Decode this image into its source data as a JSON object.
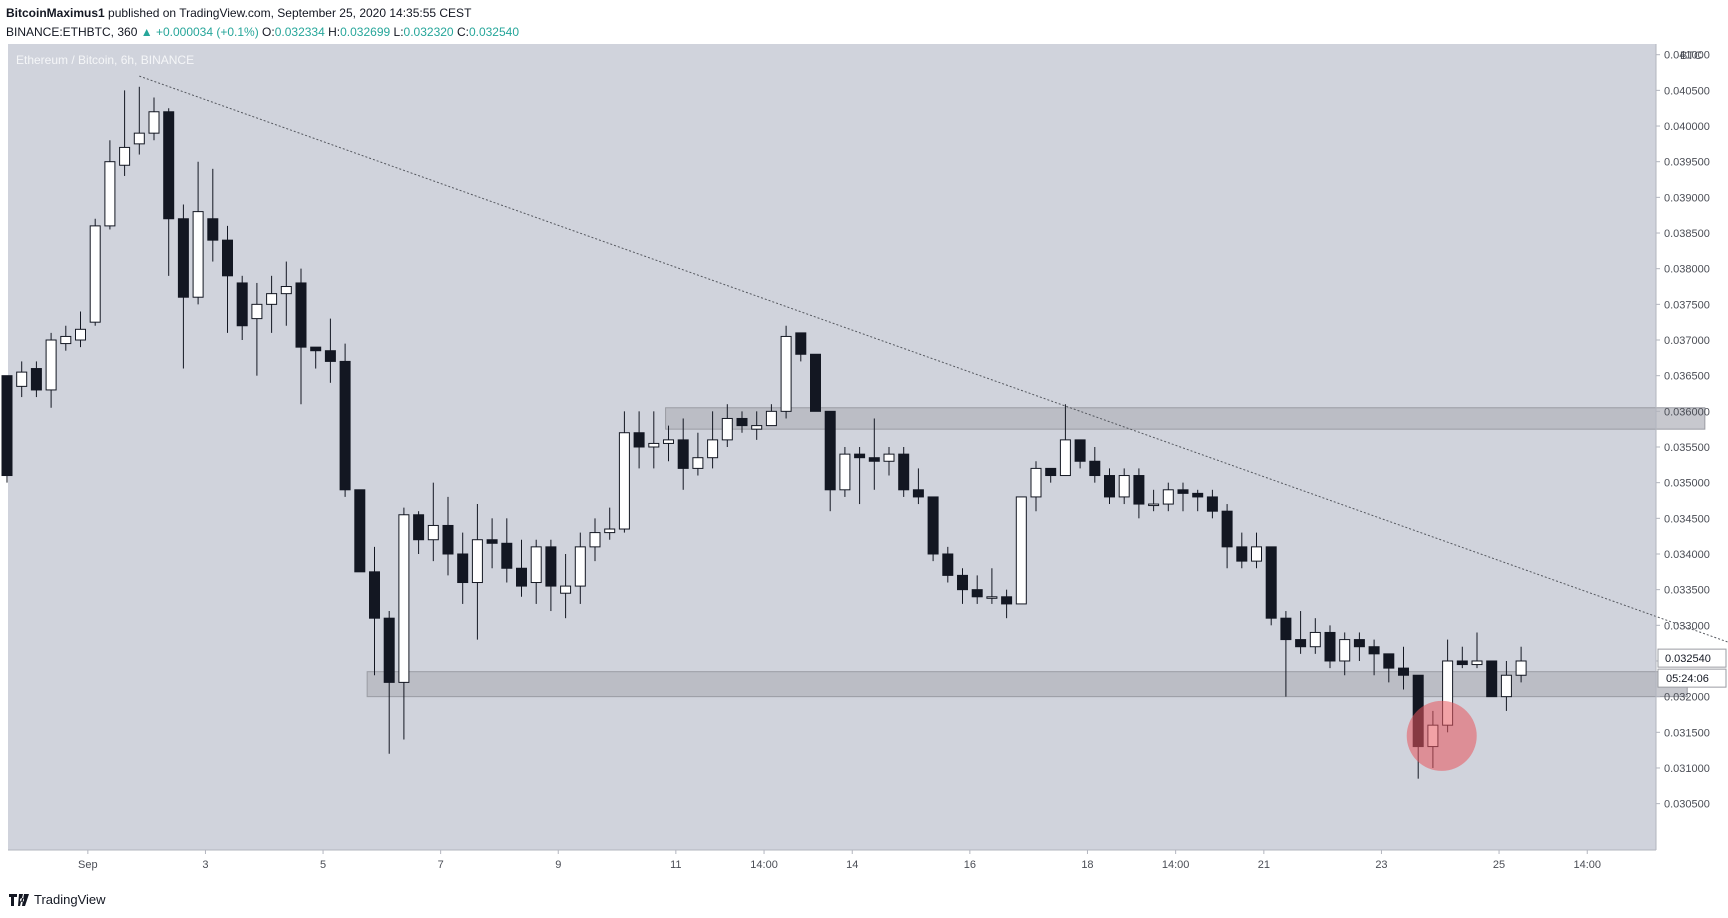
{
  "header": {
    "author": "BitcoinMaximus1",
    "published_text": "published on TradingView.com, September 25, 2020 14:35:55 CEST",
    "symbol": "BINANCE:ETHBTC, 360",
    "change": "+0.000034 (+0.1%)",
    "o_label": "O:",
    "o_value": "0.032334",
    "h_label": "H:",
    "h_value": "0.032699",
    "l_label": "L:",
    "l_value": "0.032320",
    "c_label": "C:",
    "c_value": "0.032540"
  },
  "chart_title": "Ethereum / Bitcoin, 6h, BINANCE",
  "footer": {
    "brand": "TradingView"
  },
  "chart_data": {
    "type": "candlestick",
    "currency": "BTC",
    "yticks": [
      "0.041000",
      "0.040500",
      "0.040000",
      "0.039500",
      "0.039000",
      "0.038500",
      "0.038000",
      "0.037500",
      "0.037000",
      "0.036500",
      "0.036000",
      "0.035500",
      "0.035000",
      "0.034500",
      "0.034000",
      "0.033500",
      "0.033000",
      "0.032500",
      "0.032000",
      "0.031500",
      "0.031000",
      "0.030500"
    ],
    "ylim": [
      0.02985,
      0.04115
    ],
    "xticks": [
      {
        "label": "Sep",
        "index": 5.5
      },
      {
        "label": "3",
        "index": 13.5
      },
      {
        "label": "5",
        "index": 21.5
      },
      {
        "label": "7",
        "index": 29.5
      },
      {
        "label": "9",
        "index": 37.5
      },
      {
        "label": "11",
        "index": 45.5
      },
      {
        "label": "14:00",
        "index": 51.5
      },
      {
        "label": "14",
        "index": 57.5
      },
      {
        "label": "16",
        "index": 65.5
      },
      {
        "label": "18",
        "index": 73.5
      },
      {
        "label": "14:00",
        "index": 79.5
      },
      {
        "label": "21",
        "index": 85.5
      },
      {
        "label": "23",
        "index": 93.5
      },
      {
        "label": "25",
        "index": 101.5
      },
      {
        "label": "14:00",
        "index": 107.5
      }
    ],
    "last_price_label": "0.032540",
    "countdown_label": "05:24:06",
    "candles": [
      [
        0.0365,
        0.0351,
        0.0365,
        0.035
      ],
      [
        0.03635,
        0.03655,
        0.0367,
        0.0362
      ],
      [
        0.0366,
        0.0363,
        0.0367,
        0.0362
      ],
      [
        0.0363,
        0.037,
        0.0371,
        0.03605
      ],
      [
        0.03695,
        0.03705,
        0.0372,
        0.03685
      ],
      [
        0.037,
        0.03715,
        0.0374,
        0.0369
      ],
      [
        0.03725,
        0.0386,
        0.0387,
        0.0372
      ],
      [
        0.0386,
        0.0395,
        0.0398,
        0.03855
      ],
      [
        0.03945,
        0.0397,
        0.0405,
        0.0393
      ],
      [
        0.03975,
        0.0399,
        0.04055,
        0.0396
      ],
      [
        0.0399,
        0.0402,
        0.0404,
        0.0398
      ],
      [
        0.0402,
        0.0387,
        0.04025,
        0.0379
      ],
      [
        0.0387,
        0.0376,
        0.0389,
        0.0366
      ],
      [
        0.0376,
        0.0388,
        0.0395,
        0.0375
      ],
      [
        0.0387,
        0.0384,
        0.0394,
        0.0381
      ],
      [
        0.0384,
        0.0379,
        0.0386,
        0.0371
      ],
      [
        0.0378,
        0.0372,
        0.0379,
        0.037
      ],
      [
        0.0373,
        0.0375,
        0.0378,
        0.0365
      ],
      [
        0.0375,
        0.03765,
        0.0379,
        0.0371
      ],
      [
        0.03765,
        0.03775,
        0.0381,
        0.0372
      ],
      [
        0.0378,
        0.0369,
        0.038,
        0.0361
      ],
      [
        0.0369,
        0.03685,
        0.0369,
        0.0366
      ],
      [
        0.03685,
        0.0367,
        0.0373,
        0.0364
      ],
      [
        0.0367,
        0.0349,
        0.03695,
        0.0348
      ],
      [
        0.0349,
        0.03375,
        0.0349,
        0.0338
      ],
      [
        0.03375,
        0.0331,
        0.0341,
        0.0323
      ],
      [
        0.0331,
        0.0322,
        0.0332,
        0.0312
      ],
      [
        0.0322,
        0.03455,
        0.03465,
        0.0314
      ],
      [
        0.03455,
        0.0342,
        0.0346,
        0.034
      ],
      [
        0.0342,
        0.0344,
        0.035,
        0.0339
      ],
      [
        0.0344,
        0.034,
        0.0348,
        0.0337
      ],
      [
        0.034,
        0.0336,
        0.0343,
        0.0333
      ],
      [
        0.0336,
        0.0342,
        0.0347,
        0.0328
      ],
      [
        0.0342,
        0.03415,
        0.0345,
        0.0338
      ],
      [
        0.03415,
        0.0338,
        0.0345,
        0.0336
      ],
      [
        0.0338,
        0.03355,
        0.0342,
        0.0334
      ],
      [
        0.0336,
        0.0341,
        0.0342,
        0.0333
      ],
      [
        0.0341,
        0.03355,
        0.0342,
        0.0332
      ],
      [
        0.03345,
        0.03355,
        0.034,
        0.0331
      ],
      [
        0.03355,
        0.0341,
        0.0343,
        0.0333
      ],
      [
        0.0341,
        0.0343,
        0.0345,
        0.0339
      ],
      [
        0.0343,
        0.03435,
        0.03465,
        0.0342
      ],
      [
        0.03435,
        0.0357,
        0.036,
        0.0343
      ],
      [
        0.0357,
        0.0355,
        0.036,
        0.0352
      ],
      [
        0.0355,
        0.03555,
        0.036,
        0.0352
      ],
      [
        0.03555,
        0.0356,
        0.0358,
        0.0353
      ],
      [
        0.0356,
        0.0352,
        0.0359,
        0.0349
      ],
      [
        0.0352,
        0.03535,
        0.0357,
        0.0351
      ],
      [
        0.03535,
        0.0356,
        0.036,
        0.0352
      ],
      [
        0.0356,
        0.0359,
        0.0361,
        0.0355
      ],
      [
        0.0359,
        0.0358,
        0.036,
        0.0357
      ],
      [
        0.03575,
        0.0358,
        0.036,
        0.0356
      ],
      [
        0.0358,
        0.036,
        0.0361,
        0.0358
      ],
      [
        0.036,
        0.03705,
        0.0372,
        0.0359
      ],
      [
        0.0371,
        0.0368,
        0.0371,
        0.0367
      ],
      [
        0.0368,
        0.036,
        0.0368,
        0.036
      ],
      [
        0.036,
        0.0349,
        0.036,
        0.0346
      ],
      [
        0.0349,
        0.0354,
        0.0355,
        0.0348
      ],
      [
        0.0354,
        0.03535,
        0.0355,
        0.0347
      ],
      [
        0.03535,
        0.0353,
        0.0359,
        0.0349
      ],
      [
        0.0353,
        0.0354,
        0.0355,
        0.0351
      ],
      [
        0.0354,
        0.0349,
        0.0355,
        0.0348
      ],
      [
        0.0349,
        0.0348,
        0.0352,
        0.0347
      ],
      [
        0.0348,
        0.034,
        0.0348,
        0.0339
      ],
      [
        0.034,
        0.0337,
        0.0341,
        0.0336
      ],
      [
        0.0337,
        0.0335,
        0.0338,
        0.0333
      ],
      [
        0.0335,
        0.0334,
        0.0337,
        0.0333
      ],
      [
        0.0334,
        0.0334,
        0.0338,
        0.0333
      ],
      [
        0.0334,
        0.0333,
        0.0335,
        0.0331
      ],
      [
        0.0333,
        0.0348,
        0.0348,
        0.0333
      ],
      [
        0.0348,
        0.0352,
        0.0353,
        0.0346
      ],
      [
        0.0352,
        0.0351,
        0.0352,
        0.035
      ],
      [
        0.0351,
        0.0356,
        0.0361,
        0.0351
      ],
      [
        0.0356,
        0.0353,
        0.0356,
        0.0352
      ],
      [
        0.0353,
        0.0351,
        0.0355,
        0.035
      ],
      [
        0.0351,
        0.0348,
        0.0352,
        0.0347
      ],
      [
        0.0348,
        0.0351,
        0.0352,
        0.0347
      ],
      [
        0.0351,
        0.0347,
        0.0352,
        0.0345
      ],
      [
        0.0347,
        0.0347,
        0.0349,
        0.0346
      ],
      [
        0.0347,
        0.0349,
        0.035,
        0.0346
      ],
      [
        0.0349,
        0.03485,
        0.035,
        0.0346
      ],
      [
        0.03485,
        0.0348,
        0.0349,
        0.0346
      ],
      [
        0.0348,
        0.0346,
        0.0349,
        0.0345
      ],
      [
        0.0346,
        0.0341,
        0.0347,
        0.0338
      ],
      [
        0.0341,
        0.0339,
        0.0343,
        0.0338
      ],
      [
        0.0339,
        0.0341,
        0.0343,
        0.0338
      ],
      [
        0.0341,
        0.0331,
        0.0341,
        0.033
      ],
      [
        0.0331,
        0.0328,
        0.0332,
        0.032
      ],
      [
        0.0328,
        0.0327,
        0.0332,
        0.0326
      ],
      [
        0.0327,
        0.0329,
        0.0331,
        0.0326
      ],
      [
        0.0329,
        0.0325,
        0.033,
        0.0324
      ],
      [
        0.0325,
        0.0328,
        0.0329,
        0.0323
      ],
      [
        0.0328,
        0.0327,
        0.0329,
        0.0325
      ],
      [
        0.0327,
        0.0326,
        0.0328,
        0.0323
      ],
      [
        0.0326,
        0.0324,
        0.0326,
        0.0322
      ],
      [
        0.0324,
        0.0323,
        0.0327,
        0.0321
      ],
      [
        0.0323,
        0.0313,
        0.0323,
        0.03085
      ],
      [
        0.0313,
        0.0316,
        0.0318,
        0.031
      ],
      [
        0.0316,
        0.0325,
        0.0328,
        0.0315
      ],
      [
        0.0325,
        0.03245,
        0.0327,
        0.0324
      ],
      [
        0.03245,
        0.0325,
        0.0329,
        0.0324
      ],
      [
        0.0325,
        0.032,
        0.0325,
        0.032
      ],
      [
        0.032,
        0.0323,
        0.0325,
        0.0318
      ],
      [
        0.0323,
        0.0325,
        0.0327,
        0.0322
      ]
    ],
    "zones": [
      {
        "from_index": 44.8,
        "to_index": 115.5,
        "low": 0.03575,
        "high": 0.03605
      },
      {
        "from_index": 24.5,
        "to_index": 114.3,
        "low": 0.032,
        "high": 0.03235
      }
    ],
    "trendline": {
      "from": [
        9,
        0.0407
      ],
      "to": [
        120,
        0.03255
      ]
    },
    "highlight": {
      "index": 97.6,
      "value": 0.03145
    }
  }
}
